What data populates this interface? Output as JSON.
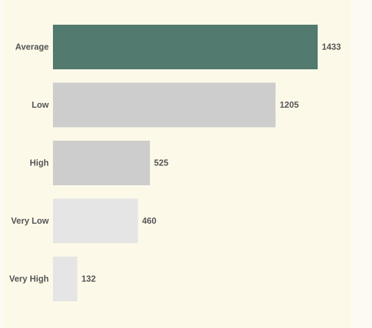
{
  "chart_data": {
    "type": "bar",
    "orientation": "horizontal",
    "categories": [
      "Average",
      "Low",
      "High",
      "Very Low",
      "Very High"
    ],
    "values": [
      1433,
      1205,
      525,
      460,
      132
    ],
    "colors": [
      "#527a6f",
      "#cdcdcd",
      "#cdcdcd",
      "#e5e5e5",
      "#e5e5e5"
    ],
    "data_labels": true,
    "grid": false,
    "legend": "none"
  },
  "colors": {
    "background": "#fdf9e9",
    "label_text": "#555555"
  }
}
